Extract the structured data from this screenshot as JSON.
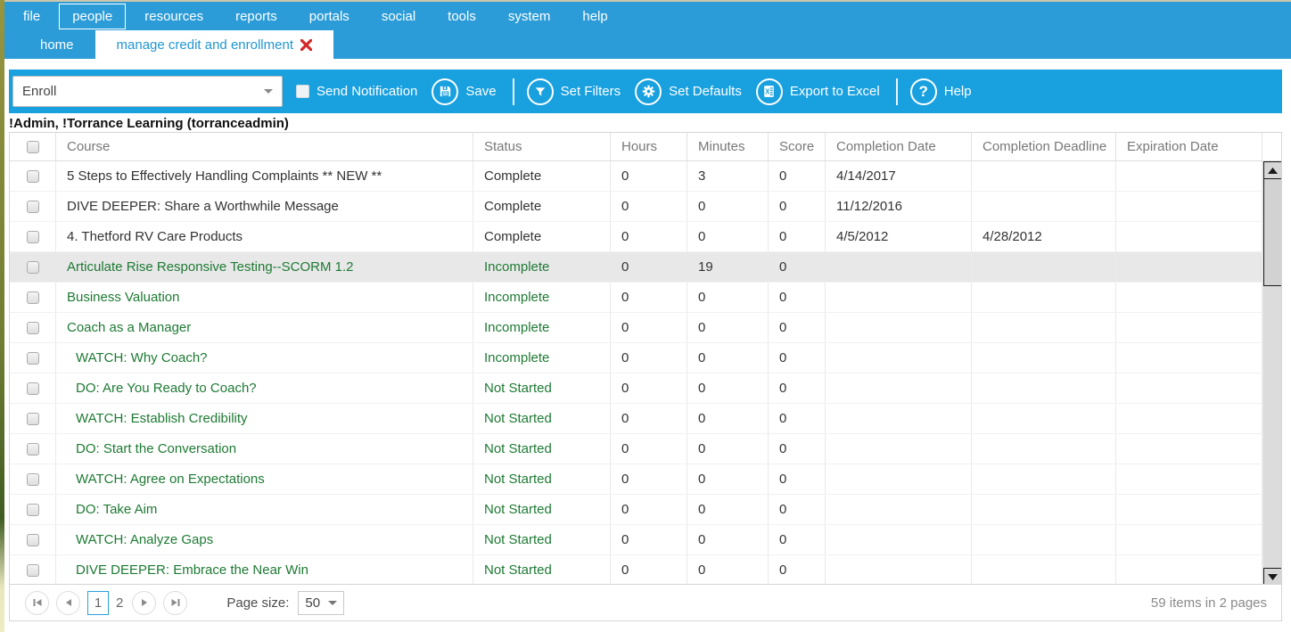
{
  "menu": {
    "items": [
      "file",
      "people",
      "resources",
      "reports",
      "portals",
      "social",
      "tools",
      "system",
      "help"
    ],
    "active": "people"
  },
  "tabs": [
    {
      "label": "home",
      "active": false,
      "closable": false
    },
    {
      "label": "manage credit and enrollment",
      "active": true,
      "closable": true
    }
  ],
  "toolbar": {
    "enroll_value": "Enroll",
    "send_notification_label": "Send Notification",
    "save_label": "Save",
    "set_filters_label": "Set Filters",
    "set_defaults_label": "Set Defaults",
    "export_label": "Export to Excel",
    "help_label": "Help",
    "icons": {
      "save": "floppy-disk",
      "set_filters": "funnel",
      "set_defaults": "gear",
      "export": "excel-sheet",
      "help_glyph": "?"
    }
  },
  "user_line": "!Admin, !Torrance Learning (torranceadmin)",
  "colors": {
    "topbar_blue": "#2b9cd8",
    "toolbar_blue": "#18a0df",
    "link_green": "#1e7a34",
    "close_red": "#d42a2a",
    "selected_row": "#e8e8e8"
  },
  "table": {
    "columns": [
      "Course",
      "Status",
      "Hours",
      "Minutes",
      "Score",
      "Completion Date",
      "Completion Deadline",
      "Expiration Date"
    ],
    "rows": [
      {
        "course": "5 Steps to Effectively Handling Complaints ** NEW **",
        "status": "Complete",
        "hours": "0",
        "minutes": "3",
        "score": "0",
        "completion_date": "4/14/2017",
        "completion_deadline": "",
        "expiration_date": "",
        "green": false,
        "indent": false,
        "selected": false
      },
      {
        "course": "DIVE DEEPER: Share a Worthwhile Message",
        "status": "Complete",
        "hours": "0",
        "minutes": "0",
        "score": "0",
        "completion_date": "11/12/2016",
        "completion_deadline": "",
        "expiration_date": "",
        "green": false,
        "indent": false,
        "selected": false
      },
      {
        "course": "4. Thetford RV Care Products",
        "status": "Complete",
        "hours": "0",
        "minutes": "0",
        "score": "0",
        "completion_date": "4/5/2012",
        "completion_deadline": "4/28/2012",
        "expiration_date": "",
        "green": false,
        "indent": false,
        "selected": false
      },
      {
        "course": "Articulate Rise Responsive Testing--SCORM 1.2",
        "status": "Incomplete",
        "hours": "0",
        "minutes": "19",
        "score": "0",
        "completion_date": "",
        "completion_deadline": "",
        "expiration_date": "",
        "green": true,
        "indent": false,
        "selected": true
      },
      {
        "course": "Business Valuation",
        "status": "Incomplete",
        "hours": "0",
        "minutes": "0",
        "score": "0",
        "completion_date": "",
        "completion_deadline": "",
        "expiration_date": "",
        "green": true,
        "indent": false,
        "selected": false
      },
      {
        "course": "Coach as a Manager",
        "status": "Incomplete",
        "hours": "0",
        "minutes": "0",
        "score": "0",
        "completion_date": "",
        "completion_deadline": "",
        "expiration_date": "",
        "green": true,
        "indent": false,
        "selected": false
      },
      {
        "course": "WATCH: Why Coach?",
        "status": "Incomplete",
        "hours": "0",
        "minutes": "0",
        "score": "0",
        "completion_date": "",
        "completion_deadline": "",
        "expiration_date": "",
        "green": true,
        "indent": true,
        "selected": false
      },
      {
        "course": "DO: Are You Ready to Coach?",
        "status": "Not Started",
        "hours": "0",
        "minutes": "0",
        "score": "0",
        "completion_date": "",
        "completion_deadline": "",
        "expiration_date": "",
        "green": true,
        "indent": true,
        "selected": false
      },
      {
        "course": "WATCH: Establish Credibility",
        "status": "Not Started",
        "hours": "0",
        "minutes": "0",
        "score": "0",
        "completion_date": "",
        "completion_deadline": "",
        "expiration_date": "",
        "green": true,
        "indent": true,
        "selected": false
      },
      {
        "course": "DO: Start the Conversation",
        "status": "Not Started",
        "hours": "0",
        "minutes": "0",
        "score": "0",
        "completion_date": "",
        "completion_deadline": "",
        "expiration_date": "",
        "green": true,
        "indent": true,
        "selected": false
      },
      {
        "course": "WATCH: Agree on Expectations",
        "status": "Not Started",
        "hours": "0",
        "minutes": "0",
        "score": "0",
        "completion_date": "",
        "completion_deadline": "",
        "expiration_date": "",
        "green": true,
        "indent": true,
        "selected": false
      },
      {
        "course": "DO: Take Aim",
        "status": "Not Started",
        "hours": "0",
        "minutes": "0",
        "score": "0",
        "completion_date": "",
        "completion_deadline": "",
        "expiration_date": "",
        "green": true,
        "indent": true,
        "selected": false
      },
      {
        "course": "WATCH: Analyze Gaps",
        "status": "Not Started",
        "hours": "0",
        "minutes": "0",
        "score": "0",
        "completion_date": "",
        "completion_deadline": "",
        "expiration_date": "",
        "green": true,
        "indent": true,
        "selected": false
      },
      {
        "course": "DIVE DEEPER: Embrace the Near Win",
        "status": "Not Started",
        "hours": "0",
        "minutes": "0",
        "score": "0",
        "completion_date": "",
        "completion_deadline": "",
        "expiration_date": "",
        "green": true,
        "indent": true,
        "selected": false
      }
    ]
  },
  "pagination": {
    "pages": [
      "1",
      "2"
    ],
    "current": "1",
    "page_size_label": "Page size:",
    "page_size": "50",
    "summary": "59 items in 2 pages"
  }
}
